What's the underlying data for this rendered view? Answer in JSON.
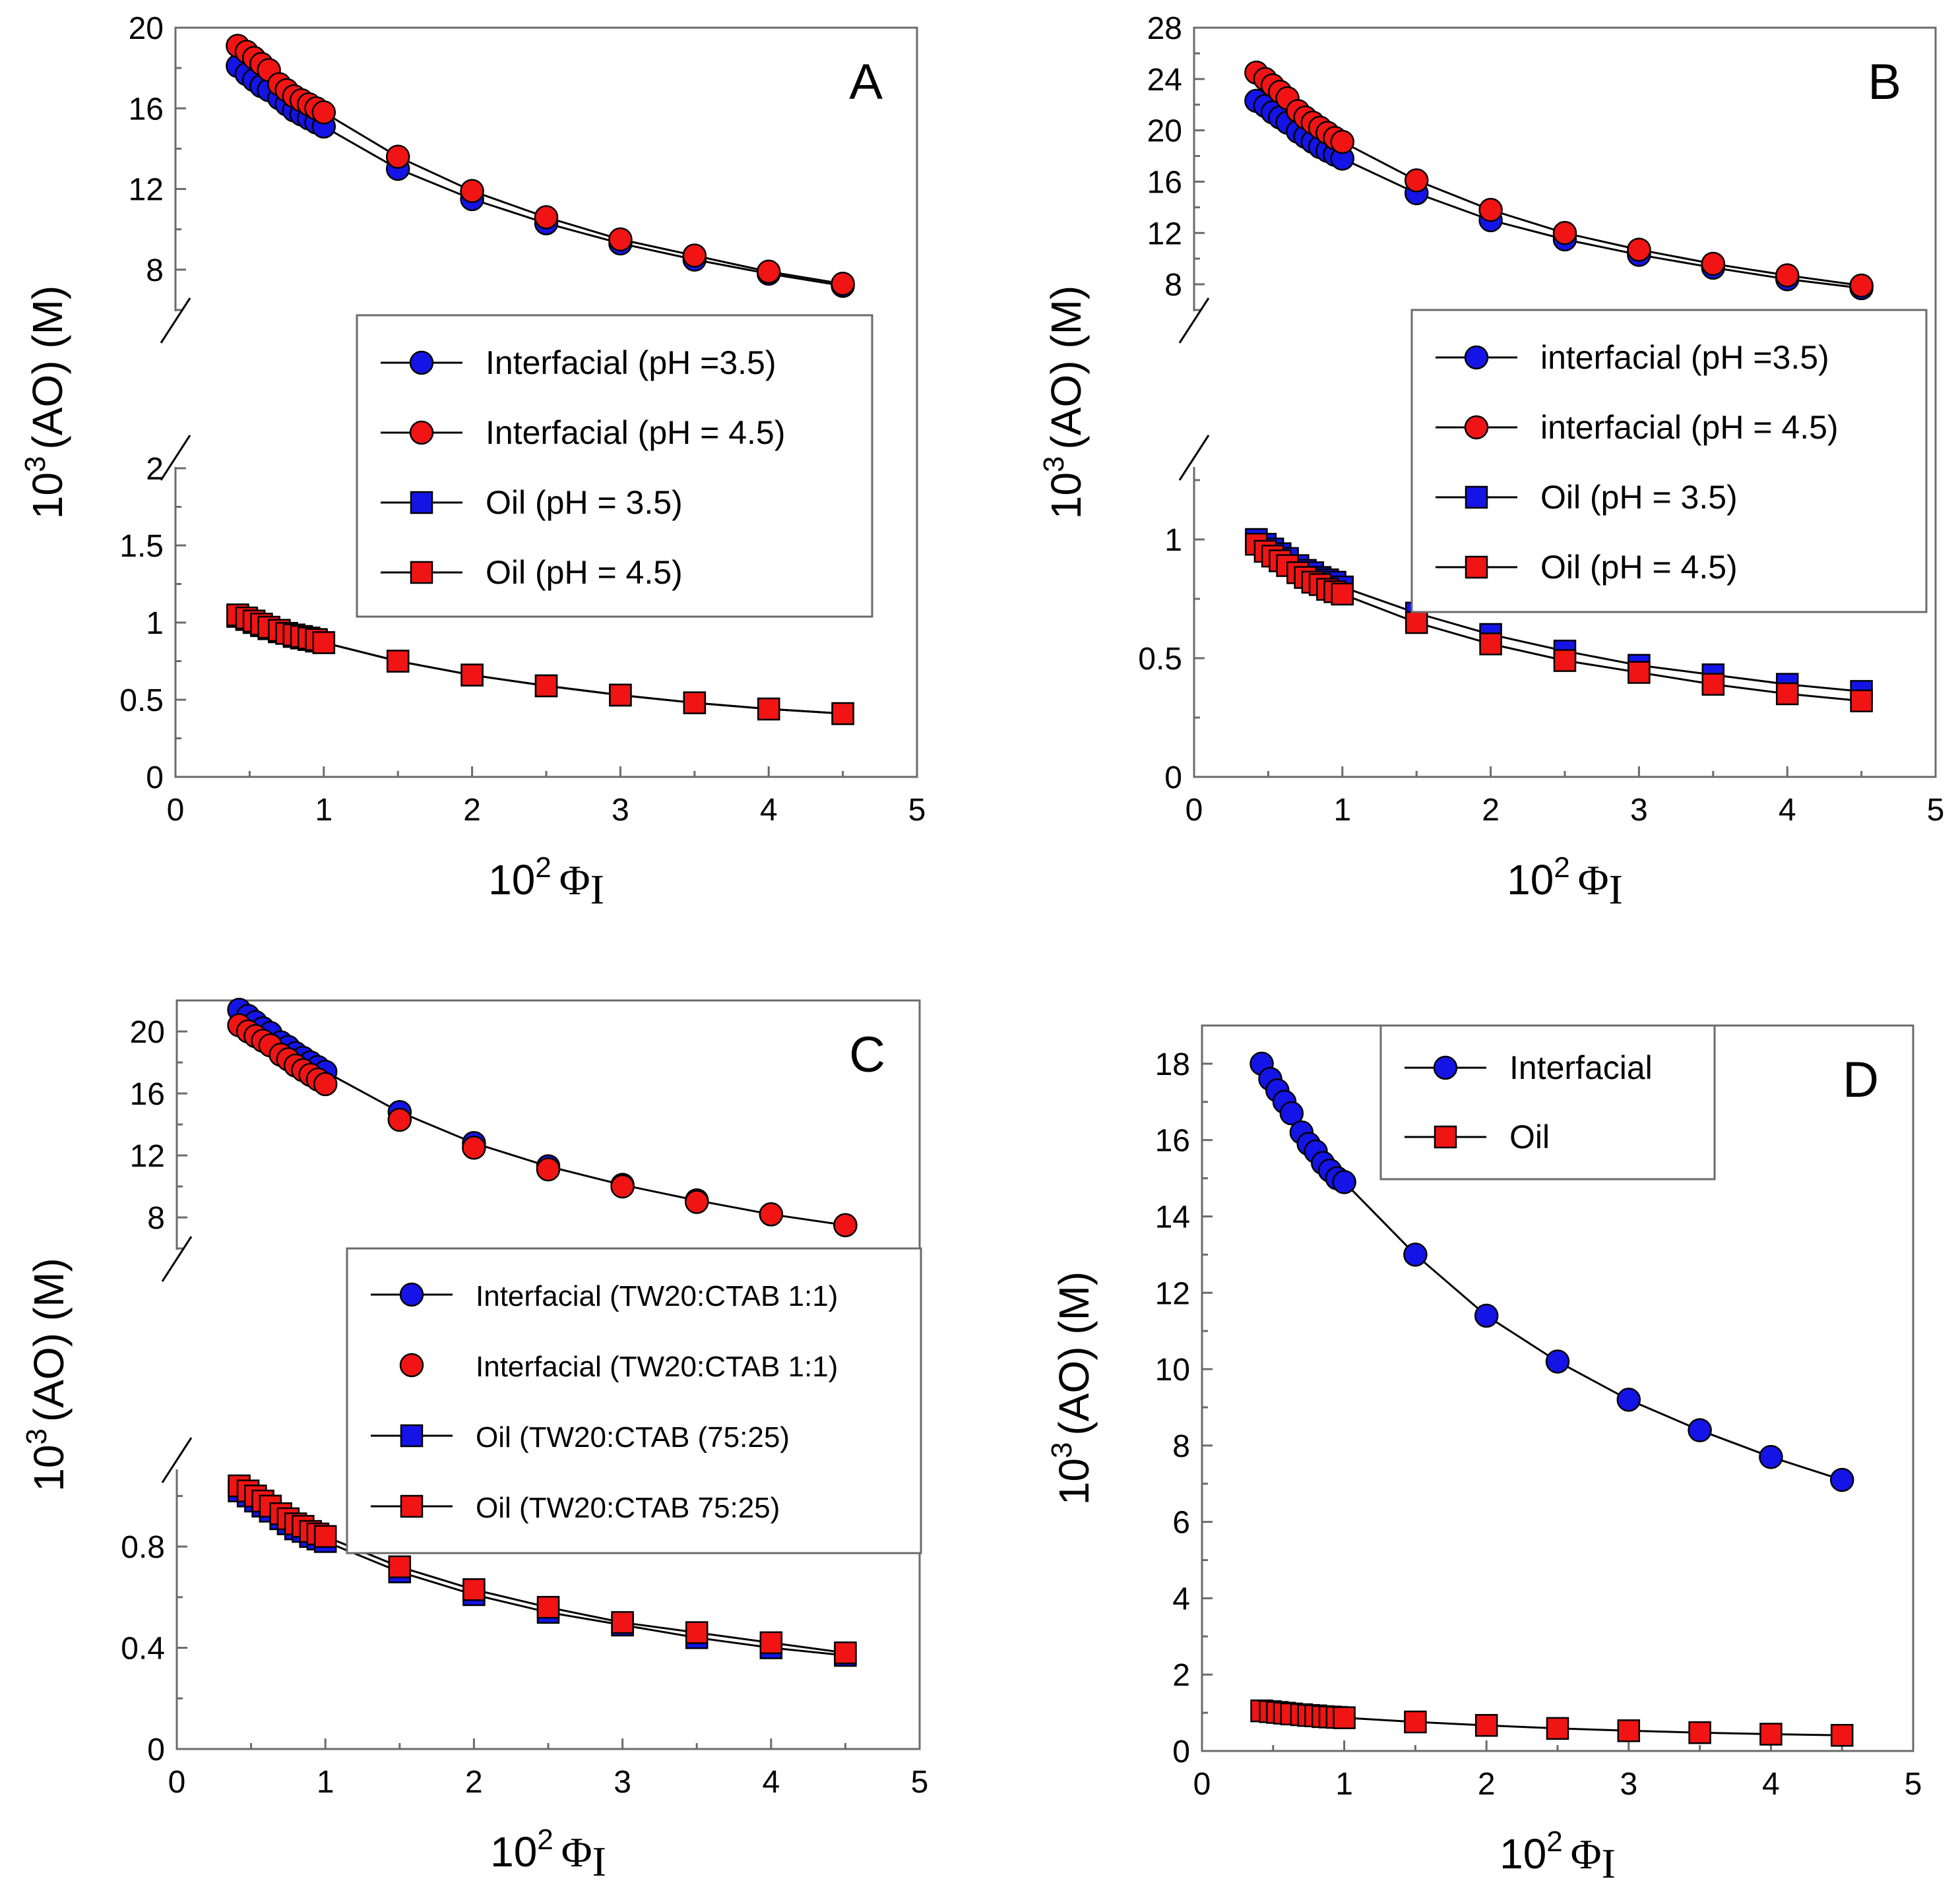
{
  "colors": {
    "blue": "#1414e6",
    "red": "#f01414",
    "axis": "#6b6b6b"
  },
  "xlabel_base": "10",
  "xlabel_exp": "2",
  "xlabel_symbol": "Φ",
  "xlabel_sub": "I",
  "ylabel_base": "10",
  "ylabel_exp": "3",
  "ylabel_rest": "(AO) (M)",
  "chart_data": [
    {
      "panel": "A",
      "type": "scatter",
      "broken_y_axis": true,
      "xlim": [
        0,
        5
      ],
      "x_ticks": [
        "0",
        "1",
        "2",
        "3",
        "4",
        "5"
      ],
      "upper_ylim": [
        6,
        20
      ],
      "upper_y_ticks": [
        "8",
        "12",
        "16",
        "20"
      ],
      "lower_ylim": [
        0,
        2
      ],
      "lower_y_ticks": [
        "0",
        "0.5",
        "1",
        "1.5",
        "2"
      ],
      "legend_position": "center-right",
      "legend_small": false,
      "x": [
        0.42,
        0.48,
        0.53,
        0.58,
        0.63,
        0.7,
        0.75,
        0.8,
        0.85,
        0.9,
        0.95,
        1.0,
        1.5,
        2.0,
        2.5,
        3.0,
        3.5,
        4.0,
        4.5
      ],
      "series": [
        {
          "name": "Interfacial (pH =3.5)",
          "marker": "circle",
          "color": "blue",
          "region": "upper",
          "line": true,
          "values": [
            18.1,
            17.7,
            17.4,
            17.1,
            16.9,
            16.5,
            16.2,
            15.9,
            15.7,
            15.5,
            15.3,
            15.1,
            13.0,
            11.5,
            10.3,
            9.3,
            8.5,
            7.8,
            7.2
          ]
        },
        {
          "name": "Interfacial (pH = 4.5)",
          "marker": "circle",
          "color": "red",
          "region": "upper",
          "line": true,
          "values": [
            19.1,
            18.8,
            18.5,
            18.2,
            17.9,
            17.2,
            16.9,
            16.6,
            16.4,
            16.2,
            16.0,
            15.8,
            13.6,
            11.9,
            10.6,
            9.5,
            8.7,
            7.9,
            7.3
          ]
        },
        {
          "name": "Oil (pH = 3.5)",
          "marker": "square",
          "color": "blue",
          "region": "lower",
          "line": true,
          "values": [
            1.04,
            1.02,
            1.0,
            0.98,
            0.96,
            0.94,
            0.93,
            0.91,
            0.9,
            0.89,
            0.88,
            0.87,
            0.75,
            0.66,
            0.59,
            0.53,
            0.48,
            0.44,
            0.41
          ]
        },
        {
          "name": "Oil (pH = 4.5)",
          "marker": "square",
          "color": "red",
          "region": "lower",
          "line": true,
          "values": [
            1.05,
            1.03,
            1.01,
            0.99,
            0.97,
            0.95,
            0.93,
            0.92,
            0.91,
            0.9,
            0.89,
            0.87,
            0.75,
            0.66,
            0.59,
            0.53,
            0.48,
            0.44,
            0.41
          ]
        }
      ]
    },
    {
      "panel": "B",
      "type": "scatter",
      "broken_y_axis": true,
      "xlim": [
        0,
        5
      ],
      "x_ticks": [
        "0",
        "1",
        "2",
        "3",
        "4",
        "5"
      ],
      "upper_ylim": [
        6,
        28
      ],
      "upper_y_ticks": [
        "8",
        "12",
        "16",
        "20",
        "24",
        "28"
      ],
      "lower_ylim": [
        0,
        1.3
      ],
      "lower_y_ticks": [
        "0",
        "0.5",
        "1"
      ],
      "legend_position": "center-right",
      "legend_small": false,
      "x": [
        0.42,
        0.48,
        0.53,
        0.58,
        0.63,
        0.7,
        0.75,
        0.8,
        0.85,
        0.9,
        0.95,
        1.0,
        1.5,
        2.0,
        2.5,
        3.0,
        3.5,
        4.0,
        4.5
      ],
      "series": [
        {
          "name": "interfacial (pH =3.5)",
          "marker": "circle",
          "color": "blue",
          "region": "upper",
          "line": true,
          "values": [
            22.3,
            21.9,
            21.4,
            21.0,
            20.6,
            19.9,
            19.5,
            19.1,
            18.7,
            18.4,
            18.1,
            17.8,
            15.1,
            13.0,
            11.5,
            10.3,
            9.3,
            8.4,
            7.7
          ]
        },
        {
          "name": "interfacial (pH = 4.5)",
          "marker": "circle",
          "color": "red",
          "region": "upper",
          "line": true,
          "values": [
            24.5,
            24.0,
            23.5,
            23.0,
            22.5,
            21.5,
            21.0,
            20.6,
            20.2,
            19.8,
            19.4,
            19.1,
            16.1,
            13.8,
            12.0,
            10.7,
            9.6,
            8.7,
            7.9
          ]
        },
        {
          "name": "Oil (pH = 3.5)",
          "marker": "square",
          "color": "blue",
          "region": "lower",
          "line": true,
          "values": [
            1.0,
            0.98,
            0.96,
            0.94,
            0.92,
            0.89,
            0.87,
            0.86,
            0.84,
            0.83,
            0.82,
            0.8,
            0.69,
            0.6,
            0.53,
            0.47,
            0.43,
            0.39,
            0.36
          ]
        },
        {
          "name": "Oil (pH = 4.5)",
          "marker": "square",
          "color": "red",
          "region": "lower",
          "line": true,
          "values": [
            0.98,
            0.95,
            0.93,
            0.91,
            0.89,
            0.86,
            0.84,
            0.82,
            0.81,
            0.79,
            0.78,
            0.77,
            0.65,
            0.56,
            0.49,
            0.44,
            0.39,
            0.35,
            0.32
          ]
        }
      ]
    },
    {
      "panel": "C",
      "type": "scatter",
      "broken_y_axis": true,
      "xlim": [
        0,
        5
      ],
      "x_ticks": [
        "0",
        "1",
        "2",
        "3",
        "4",
        "5"
      ],
      "upper_ylim": [
        6,
        22
      ],
      "upper_y_ticks": [
        "8",
        "12",
        "16",
        "20"
      ],
      "lower_ylim": [
        0,
        1.1
      ],
      "lower_y_ticks": [
        "0",
        "0.4",
        "0.8"
      ],
      "legend_position": "center-right",
      "legend_small": true,
      "x": [
        0.42,
        0.48,
        0.53,
        0.58,
        0.63,
        0.7,
        0.75,
        0.8,
        0.85,
        0.9,
        0.95,
        1.0,
        1.5,
        2.0,
        2.5,
        3.0,
        3.5,
        4.0,
        4.5
      ],
      "series": [
        {
          "name": "Interfacial (TW20:CTAB 1:1)",
          "marker": "circle",
          "color": "blue",
          "region": "upper",
          "line": true,
          "values": [
            21.4,
            21.0,
            20.6,
            20.2,
            19.9,
            19.3,
            19.0,
            18.6,
            18.3,
            18.0,
            17.7,
            17.4,
            14.8,
            12.8,
            11.3,
            10.1,
            9.1,
            8.2,
            7.5
          ]
        },
        {
          "name": "Interfacial (TW20:CTAB 1:1)",
          "marker": "circle",
          "color": "red",
          "region": "upper",
          "line": false,
          "values": [
            20.4,
            20.0,
            19.7,
            19.4,
            19.1,
            18.5,
            18.2,
            17.8,
            17.5,
            17.2,
            16.9,
            16.6,
            14.3,
            12.5,
            11.1,
            10.0,
            9.0,
            8.2,
            7.5
          ]
        },
        {
          "name": "Oil (TW20:CTAB (75:25)",
          "marker": "square",
          "color": "blue",
          "region": "lower",
          "line": true,
          "values": [
            1.02,
            1.0,
            0.98,
            0.96,
            0.94,
            0.91,
            0.89,
            0.87,
            0.86,
            0.84,
            0.83,
            0.82,
            0.7,
            0.61,
            0.54,
            0.49,
            0.44,
            0.4,
            0.37
          ]
        },
        {
          "name": "Oil (TW20:CTAB 75:25)",
          "marker": "square",
          "color": "red",
          "region": "lower",
          "line": true,
          "values": [
            1.04,
            1.02,
            1.0,
            0.98,
            0.96,
            0.93,
            0.91,
            0.89,
            0.88,
            0.86,
            0.85,
            0.84,
            0.72,
            0.63,
            0.56,
            0.5,
            0.46,
            0.42,
            0.38
          ]
        }
      ]
    },
    {
      "panel": "D",
      "type": "scatter",
      "broken_y_axis": false,
      "xlim": [
        0,
        5
      ],
      "x_ticks": [
        "0",
        "1",
        "2",
        "3",
        "4",
        "5"
      ],
      "ylim": [
        0,
        19
      ],
      "y_ticks": [
        "0",
        "2",
        "4",
        "6",
        "8",
        "10",
        "12",
        "14",
        "16",
        "18"
      ],
      "legend_position": "top-center",
      "legend_small": false,
      "x": [
        0.42,
        0.48,
        0.53,
        0.58,
        0.63,
        0.7,
        0.75,
        0.8,
        0.85,
        0.9,
        0.95,
        1.0,
        1.5,
        2.0,
        2.5,
        3.0,
        3.5,
        4.0,
        4.5
      ],
      "series": [
        {
          "name": "Interfacial",
          "marker": "circle",
          "color": "blue",
          "region": "main",
          "line": true,
          "values": [
            18.0,
            17.6,
            17.3,
            17.0,
            16.7,
            16.2,
            15.9,
            15.7,
            15.4,
            15.2,
            15.0,
            14.9,
            13.0,
            11.4,
            10.2,
            9.2,
            8.4,
            7.7,
            7.1
          ]
        },
        {
          "name": "Oil",
          "marker": "square",
          "color": "red",
          "region": "main",
          "line": true,
          "values": [
            1.05,
            1.03,
            1.01,
            0.99,
            0.97,
            0.95,
            0.93,
            0.92,
            0.9,
            0.89,
            0.88,
            0.87,
            0.76,
            0.67,
            0.59,
            0.53,
            0.48,
            0.44,
            0.41
          ]
        }
      ]
    }
  ]
}
